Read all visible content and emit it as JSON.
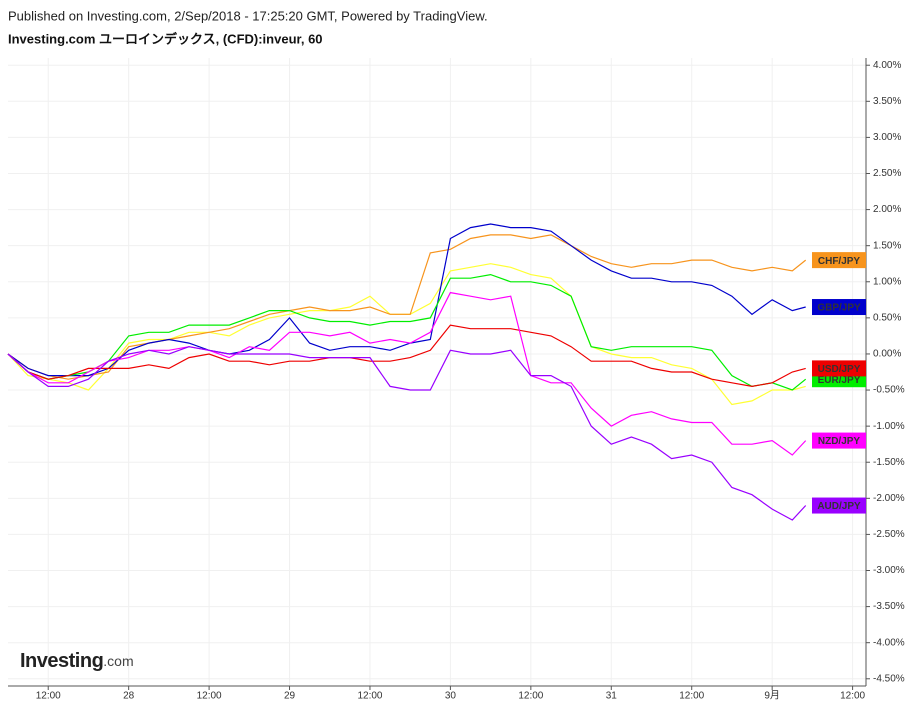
{
  "chart_data": {
    "type": "line",
    "header": "Published on Investing.com, 2/Sep/2018 - 17:25:20 GMT, Powered by TradingView.",
    "title": "Investing.com ユーロインデックス, (CFD):inveur, 60",
    "logo": "Investing",
    "logo_suffix": ".com",
    "x": [
      -18,
      -15,
      -12,
      -9,
      -6,
      -3,
      0,
      3,
      6,
      9,
      12,
      15,
      18,
      21,
      24,
      27,
      30,
      33,
      36,
      39,
      42,
      45,
      48,
      51,
      54,
      57,
      60,
      63,
      66,
      69,
      72,
      75,
      78,
      81,
      84,
      87,
      90,
      93,
      96,
      99,
      101
    ],
    "xlim": [
      -18,
      110
    ],
    "xticks": [
      {
        "value": -12,
        "label": "12:00"
      },
      {
        "value": 0,
        "label": "28"
      },
      {
        "value": 12,
        "label": "12:00"
      },
      {
        "value": 24,
        "label": "29"
      },
      {
        "value": 36,
        "label": "12:00"
      },
      {
        "value": 48,
        "label": "30"
      },
      {
        "value": 60,
        "label": "12:00"
      },
      {
        "value": 72,
        "label": "31"
      },
      {
        "value": 84,
        "label": "12:00"
      },
      {
        "value": 96,
        "label": "9月"
      },
      {
        "value": 108,
        "label": "12:00"
      }
    ],
    "ylim": [
      -4.6,
      4.1
    ],
    "yticks": [
      {
        "value": 4.0,
        "label": "4.00%"
      },
      {
        "value": 3.5,
        "label": "3.50%"
      },
      {
        "value": 3.0,
        "label": "3.00%"
      },
      {
        "value": 2.5,
        "label": "2.50%"
      },
      {
        "value": 2.0,
        "label": "2.00%"
      },
      {
        "value": 1.5,
        "label": "1.50%"
      },
      {
        "value": 1.0,
        "label": "1.00%"
      },
      {
        "value": 0.5,
        "label": "0.50%"
      },
      {
        "value": 0,
        "label": "0.00%"
      },
      {
        "value": -0.5,
        "label": "-0.50%"
      },
      {
        "value": -1.0,
        "label": "-1.00%"
      },
      {
        "value": -1.5,
        "label": "-1.50%"
      },
      {
        "value": -2.0,
        "label": "-2.00%"
      },
      {
        "value": -2.5,
        "label": "-2.50%"
      },
      {
        "value": -3.0,
        "label": "-3.00%"
      },
      {
        "value": -3.5,
        "label": "-3.50%"
      },
      {
        "value": -4.0,
        "label": "-4.00%"
      },
      {
        "value": -4.5,
        "label": "-4.50%"
      }
    ],
    "grid": true,
    "series": [
      {
        "color": "#ffff33",
        "values": [
          0,
          -0.3,
          -0.35,
          -0.4,
          -0.5,
          -0.2,
          0.15,
          0.2,
          0.2,
          0.3,
          0.3,
          0.25,
          0.4,
          0.5,
          0.55,
          0.6,
          0.6,
          0.65,
          0.8,
          0.55,
          0.55,
          0.7,
          1.15,
          1.2,
          1.25,
          1.2,
          1.1,
          1.05,
          0.8,
          0.1,
          0.0,
          -0.05,
          -0.05,
          -0.15,
          -0.2,
          -0.35,
          -0.7,
          -0.65,
          -0.5,
          -0.5,
          -0.45
        ]
      },
      {
        "name": "CHF/JPY",
        "color": "#f7941d",
        "values": [
          0,
          -0.2,
          -0.3,
          -0.35,
          -0.3,
          -0.25,
          0.1,
          0.15,
          0.2,
          0.25,
          0.3,
          0.35,
          0.45,
          0.55,
          0.6,
          0.65,
          0.6,
          0.6,
          0.65,
          0.55,
          0.55,
          1.4,
          1.45,
          1.6,
          1.65,
          1.65,
          1.6,
          1.65,
          1.5,
          1.35,
          1.25,
          1.2,
          1.25,
          1.25,
          1.3,
          1.3,
          1.2,
          1.15,
          1.2,
          1.15,
          1.3
        ]
      },
      {
        "name": "GBP/JPY",
        "color": "#0000cc",
        "values": [
          0,
          -0.2,
          -0.3,
          -0.3,
          -0.3,
          -0.2,
          0.05,
          0.15,
          0.2,
          0.15,
          0.05,
          0.0,
          0.05,
          0.2,
          0.5,
          0.15,
          0.05,
          0.1,
          0.1,
          0.05,
          0.15,
          0.2,
          1.6,
          1.75,
          1.8,
          1.75,
          1.75,
          1.7,
          1.5,
          1.3,
          1.15,
          1.05,
          1.05,
          1.0,
          1.0,
          0.95,
          0.8,
          0.55,
          0.75,
          0.6,
          0.65
        ]
      },
      {
        "name": "EUR/JPY",
        "color": "#00ee00",
        "values": [
          0,
          -0.25,
          -0.35,
          -0.3,
          -0.25,
          -0.1,
          0.25,
          0.3,
          0.3,
          0.4,
          0.4,
          0.4,
          0.5,
          0.6,
          0.6,
          0.5,
          0.45,
          0.45,
          0.4,
          0.45,
          0.45,
          0.5,
          1.05,
          1.05,
          1.1,
          1.0,
          1.0,
          0.95,
          0.8,
          0.1,
          0.05,
          0.1,
          0.1,
          0.1,
          0.1,
          0.05,
          -0.3,
          -0.45,
          -0.4,
          -0.5,
          -0.35
        ]
      },
      {
        "name": "USD/JPY",
        "color": "#ee0000",
        "values": [
          0,
          -0.25,
          -0.35,
          -0.3,
          -0.2,
          -0.2,
          -0.2,
          -0.15,
          -0.2,
          -0.05,
          0.0,
          -0.1,
          -0.1,
          -0.15,
          -0.1,
          -0.1,
          -0.05,
          -0.05,
          -0.1,
          -0.1,
          -0.05,
          0.05,
          0.4,
          0.35,
          0.35,
          0.35,
          0.3,
          0.25,
          0.1,
          -0.1,
          -0.1,
          -0.1,
          -0.2,
          -0.25,
          -0.25,
          -0.35,
          -0.4,
          -0.45,
          -0.4,
          -0.25,
          -0.2
        ]
      },
      {
        "name": "NZD/JPY",
        "color": "#ff00ff",
        "values": [
          0,
          -0.25,
          -0.4,
          -0.4,
          -0.25,
          -0.1,
          -0.05,
          0.05,
          0.05,
          0.1,
          0.05,
          -0.05,
          0.1,
          0.05,
          0.3,
          0.3,
          0.25,
          0.3,
          0.15,
          0.2,
          0.15,
          0.3,
          0.85,
          0.8,
          0.75,
          0.8,
          -0.3,
          -0.4,
          -0.4,
          -0.75,
          -1.0,
          -0.85,
          -0.8,
          -0.9,
          -0.95,
          -0.95,
          -1.25,
          -1.25,
          -1.2,
          -1.4,
          -1.2
        ]
      },
      {
        "name": "AUD/JPY",
        "color": "#9900ff",
        "values": [
          0,
          -0.25,
          -0.45,
          -0.45,
          -0.35,
          -0.1,
          0.0,
          0.05,
          0.0,
          0.1,
          0.05,
          0.0,
          0.0,
          0.0,
          0.0,
          -0.05,
          -0.05,
          -0.05,
          -0.05,
          -0.45,
          -0.5,
          -0.5,
          0.05,
          0.0,
          0.0,
          0.05,
          -0.3,
          -0.3,
          -0.45,
          -1.0,
          -1.25,
          -1.15,
          -1.25,
          -1.45,
          -1.4,
          -1.5,
          -1.85,
          -1.95,
          -2.15,
          -2.3,
          -2.1
        ]
      }
    ]
  }
}
